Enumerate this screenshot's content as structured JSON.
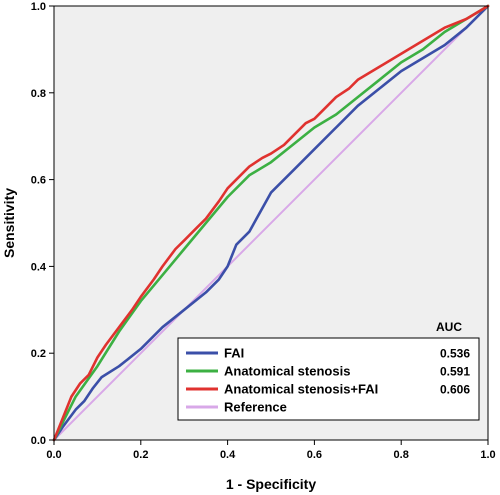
{
  "chart_data": {
    "type": "line",
    "xlabel": "1 - Specificity",
    "ylabel": "Sensitivity",
    "xlim": [
      0,
      1
    ],
    "ylim": [
      0,
      1
    ],
    "xticks": [
      "0.0",
      "0.2",
      "0.4",
      "0.6",
      "0.8",
      "1.0"
    ],
    "yticks": [
      "0.0",
      "0.2",
      "0.4",
      "0.6",
      "0.8",
      "1.0"
    ],
    "grid": false,
    "legend_position": "bottom-right",
    "legend_header": "AUC",
    "series": [
      {
        "name": "FAI",
        "auc": "0.536",
        "color": "#3b4fa8",
        "x": [
          0,
          0.02,
          0.05,
          0.07,
          0.09,
          0.11,
          0.15,
          0.2,
          0.25,
          0.3,
          0.35,
          0.38,
          0.4,
          0.42,
          0.45,
          0.5,
          0.55,
          0.6,
          0.65,
          0.7,
          0.75,
          0.8,
          0.85,
          0.9,
          0.95,
          1.0
        ],
        "y": [
          0,
          0.03,
          0.07,
          0.09,
          0.12,
          0.145,
          0.17,
          0.21,
          0.26,
          0.3,
          0.34,
          0.37,
          0.4,
          0.45,
          0.48,
          0.57,
          0.62,
          0.67,
          0.72,
          0.77,
          0.81,
          0.85,
          0.88,
          0.91,
          0.95,
          1.0
        ]
      },
      {
        "name": "Anatomical stenosis",
        "auc": "0.591",
        "color": "#3cb043",
        "x": [
          0,
          0.02,
          0.05,
          0.1,
          0.15,
          0.2,
          0.25,
          0.3,
          0.35,
          0.4,
          0.45,
          0.5,
          0.55,
          0.6,
          0.65,
          0.7,
          0.75,
          0.8,
          0.85,
          0.9,
          0.95,
          1.0
        ],
        "y": [
          0,
          0.04,
          0.1,
          0.17,
          0.25,
          0.32,
          0.38,
          0.44,
          0.5,
          0.56,
          0.61,
          0.64,
          0.68,
          0.72,
          0.75,
          0.79,
          0.83,
          0.87,
          0.9,
          0.94,
          0.97,
          1.0
        ]
      },
      {
        "name": "Anatomical stenosis+FAI",
        "auc": "0.606",
        "color": "#e0322f",
        "x": [
          0,
          0.02,
          0.04,
          0.06,
          0.08,
          0.1,
          0.12,
          0.15,
          0.18,
          0.2,
          0.23,
          0.25,
          0.28,
          0.3,
          0.33,
          0.35,
          0.38,
          0.4,
          0.42,
          0.45,
          0.48,
          0.5,
          0.53,
          0.55,
          0.58,
          0.6,
          0.63,
          0.65,
          0.68,
          0.7,
          0.75,
          0.8,
          0.85,
          0.9,
          0.95,
          1.0
        ],
        "y": [
          0,
          0.05,
          0.1,
          0.13,
          0.15,
          0.19,
          0.22,
          0.26,
          0.3,
          0.33,
          0.37,
          0.4,
          0.44,
          0.46,
          0.49,
          0.51,
          0.55,
          0.58,
          0.6,
          0.63,
          0.65,
          0.66,
          0.68,
          0.7,
          0.73,
          0.74,
          0.77,
          0.79,
          0.81,
          0.83,
          0.86,
          0.89,
          0.92,
          0.95,
          0.97,
          1.0
        ]
      },
      {
        "name": "Reference",
        "auc": "",
        "color": "#d8a8e8",
        "x": [
          0,
          1
        ],
        "y": [
          0,
          1
        ]
      }
    ]
  },
  "style": {
    "plot_background": "#efefef",
    "frame_color": "#000000"
  }
}
